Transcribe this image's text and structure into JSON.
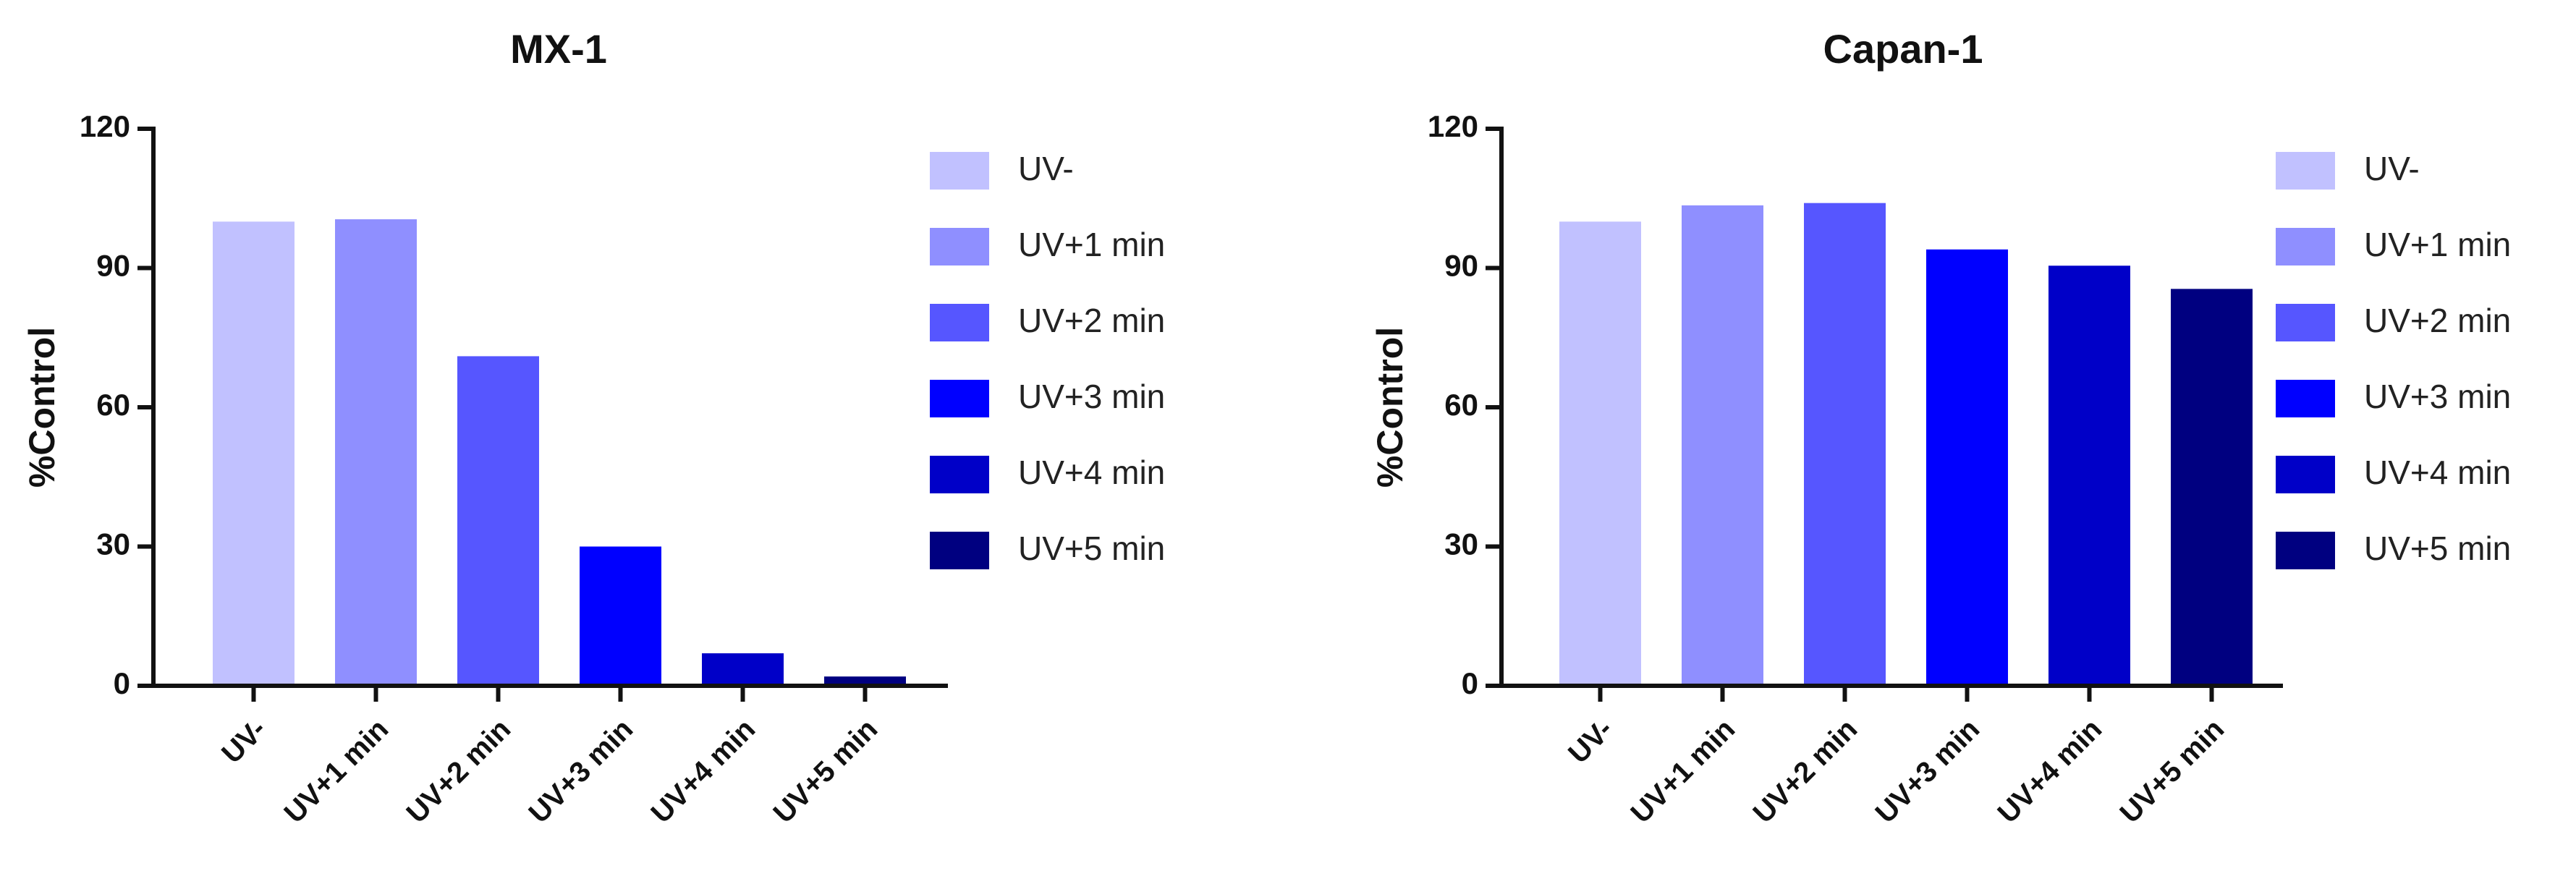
{
  "chart_data": [
    {
      "type": "bar",
      "title": "MX-1",
      "xlabel": "",
      "ylabel": "%Control",
      "ylim": [
        0,
        120
      ],
      "yticks": [
        "0",
        "30",
        "60",
        "90",
        "120"
      ],
      "categories": [
        "UV-",
        "UV+1 min",
        "UV+2 min",
        "UV+3 min",
        "UV+4 min",
        "UV+5 min"
      ],
      "values": [
        100,
        100.5,
        71,
        30,
        7,
        2
      ],
      "colors": [
        "#c1c1ff",
        "#8f8fff",
        "#5656ff",
        "#0000ff",
        "#0000c8",
        "#000080"
      ],
      "legend": {
        "position": "right",
        "entries": [
          "UV-",
          "UV+1 min",
          "UV+2 min",
          "UV+3 min",
          "UV+4 min",
          "UV+5 min"
        ]
      },
      "grid": false
    },
    {
      "type": "bar",
      "title": "Capan-1",
      "xlabel": "",
      "ylabel": "%Control",
      "ylim": [
        0,
        120
      ],
      "yticks": [
        "0",
        "30",
        "60",
        "90",
        "120"
      ],
      "categories": [
        "UV-",
        "UV+1 min",
        "UV+2 min",
        "UV+3 min",
        "UV+4 min",
        "UV+5 min"
      ],
      "values": [
        100,
        103.5,
        104,
        94,
        90.5,
        85.5
      ],
      "colors": [
        "#c1c1ff",
        "#8f8fff",
        "#5656ff",
        "#0000ff",
        "#0000c8",
        "#000080"
      ],
      "legend": {
        "position": "right",
        "entries": [
          "UV-",
          "UV+1 min",
          "UV+2 min",
          "UV+3 min",
          "UV+4 min",
          "UV+5 min"
        ]
      },
      "grid": false
    }
  ]
}
